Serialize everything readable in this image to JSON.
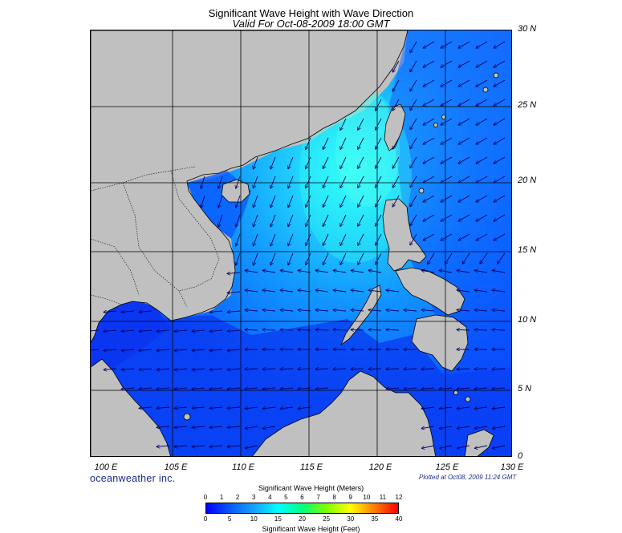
{
  "header": {
    "title": "Significant Wave Height with Wave Direction",
    "valid_time": "Valid For Oct-08-2009 18:00 GMT"
  },
  "map": {
    "lat_labels": [
      "30 N",
      "25 N",
      "20 N",
      "15 N",
      "10 N",
      "5 N",
      "0"
    ],
    "lon_labels": [
      "100 E",
      "105 E",
      "110 E",
      "115 E",
      "120 E",
      "125 E",
      "130 E"
    ],
    "lon_range": [
      100,
      130
    ],
    "lat_range": [
      0,
      30
    ],
    "land_color": "#c0c0c0",
    "coast_color": "#000000"
  },
  "footer": {
    "brand": "oceanweather inc.",
    "plotted": "Plotted at Oct08, 2009 11:24 GMT"
  },
  "colorbar": {
    "title_top": "Significant Wave Height (Meters)",
    "title_bottom": "Significant Wave Height (Feet)",
    "meter_ticks": [
      "0",
      "1",
      "2",
      "3",
      "4",
      "5",
      "6",
      "7",
      "8",
      "9",
      "10",
      "11",
      "12"
    ],
    "feet_ticks": [
      "0",
      "5",
      "10",
      "15",
      "20",
      "25",
      "30",
      "35",
      "40"
    ],
    "colors": [
      "#0000ff",
      "#0a5aff",
      "#17a3ff",
      "#00ffff",
      "#00ff7f",
      "#7fff00",
      "#ffff00",
      "#ff7f00",
      "#ff0000"
    ]
  }
}
